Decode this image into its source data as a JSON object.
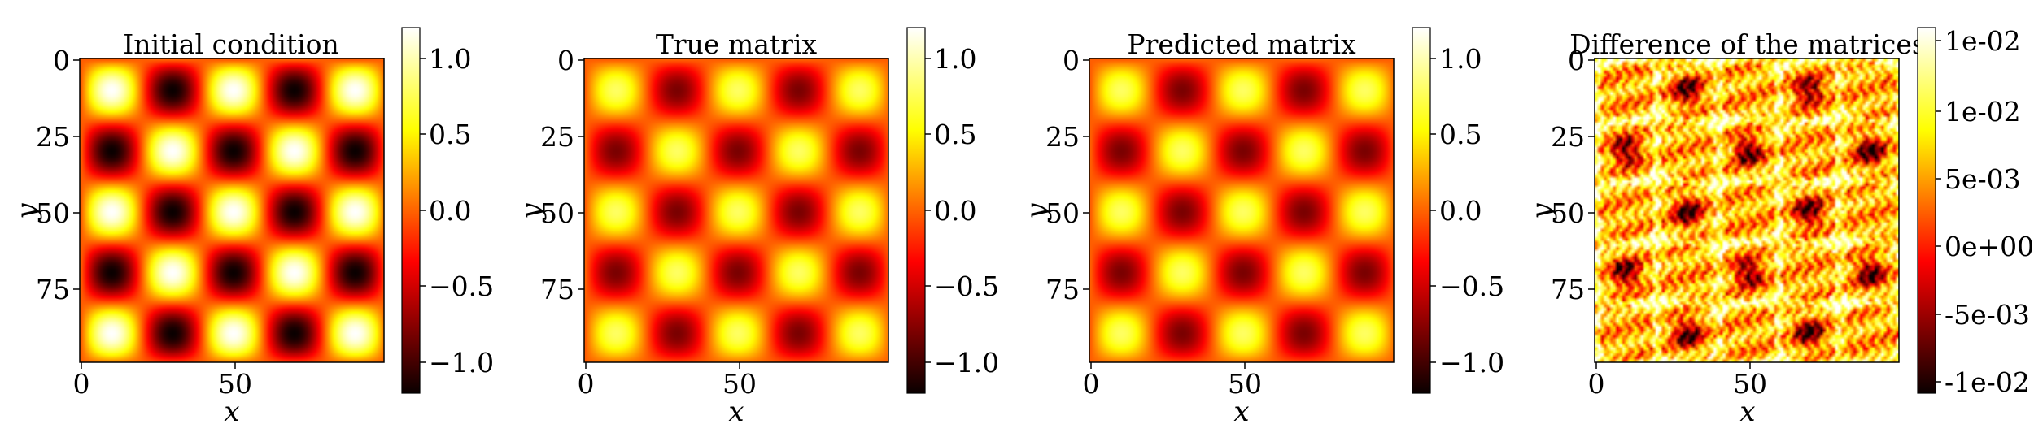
{
  "colormap": "hot",
  "chart_data": [
    {
      "type": "heatmap",
      "title": "Initial condition",
      "xlabel": "x",
      "ylabel": "y",
      "xlim": [
        0,
        99
      ],
      "ylim": [
        99,
        0
      ],
      "x_ticks": [
        "0",
        "50"
      ],
      "y_ticks": [
        "0",
        "25",
        "50",
        "75"
      ],
      "grid": false,
      "field": "sin(pi*x/20)*sin(pi*y/20) peaks on a 5x5 checkerboard",
      "peak_amplitude": 1.2,
      "colorbar": {
        "vmin": -1.2,
        "vmax": 1.2,
        "ticks": [
          1.0,
          0.5,
          0.0,
          -0.5,
          -1.0
        ],
        "tick_labels": [
          "1.0",
          "0.5",
          "0.0",
          "−0.5",
          "−1.0"
        ]
      }
    },
    {
      "type": "heatmap",
      "title": "True matrix",
      "xlabel": "x",
      "ylabel": "y",
      "xlim": [
        0,
        99
      ],
      "ylim": [
        99,
        0
      ],
      "x_ticks": [
        "0",
        "50"
      ],
      "y_ticks": [
        "0",
        "25",
        "50",
        "75"
      ],
      "grid": false,
      "field": "damped checkerboard",
      "peak_amplitude": 0.8,
      "colorbar": {
        "vmin": -1.2,
        "vmax": 1.2,
        "ticks": [
          1.0,
          0.5,
          0.0,
          -0.5,
          -1.0
        ],
        "tick_labels": [
          "1.0",
          "0.5",
          "0.0",
          "−0.5",
          "−1.0"
        ]
      }
    },
    {
      "type": "heatmap",
      "title": "Predicted matrix",
      "xlabel": "x",
      "ylabel": "y",
      "xlim": [
        0,
        99
      ],
      "ylim": [
        99,
        0
      ],
      "x_ticks": [
        "0",
        "50"
      ],
      "y_ticks": [
        "0",
        "25",
        "50",
        "75"
      ],
      "grid": false,
      "field": "damped checkerboard",
      "peak_amplitude": 0.8,
      "colorbar": {
        "vmin": -1.2,
        "vmax": 1.2,
        "ticks": [
          1.0,
          0.5,
          0.0,
          -0.5,
          -1.0
        ],
        "tick_labels": [
          "1.0",
          "0.5",
          "0.0",
          "−0.5",
          "−1.0"
        ]
      }
    },
    {
      "type": "heatmap",
      "title": "Difference of the matrices",
      "xlabel": "x",
      "ylabel": "y",
      "xlim": [
        0,
        99
      ],
      "ylim": [
        99,
        0
      ],
      "x_ticks": [
        "0",
        "50"
      ],
      "y_ticks": [
        "0",
        "25",
        "50",
        "75"
      ],
      "grid": false,
      "field": "small residual error, textured",
      "colorbar": {
        "vmin": -0.012,
        "vmax": 0.012,
        "ticks": [
          0.01,
          0.005,
          0.0,
          -0.005,
          -0.01
        ],
        "tick_labels": [
          "1e-02",
          "5e-03",
          "0e+00",
          "-5e-03",
          "-1e-02"
        ],
        "extra_top_label": "1e-02"
      }
    }
  ]
}
